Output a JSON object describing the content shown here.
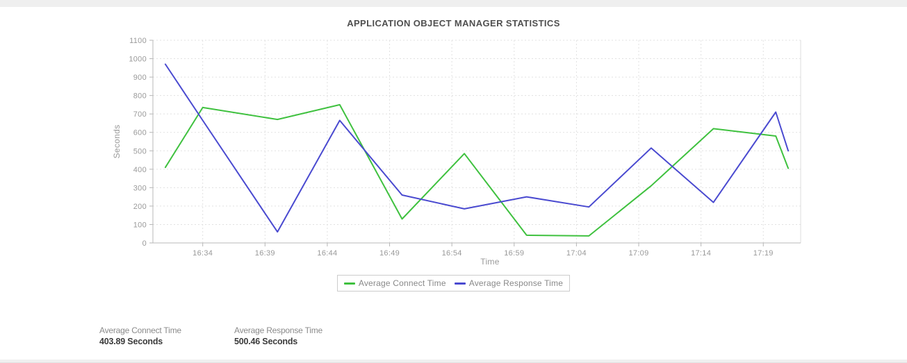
{
  "page": {
    "top_strip_color": "#efefef",
    "bottom_strip_color": "#f0f0f0"
  },
  "chart_data": {
    "type": "line",
    "title": "APPLICATION OBJECT MANAGER STATISTICS",
    "xlabel": "Time",
    "ylabel": "Seconds",
    "ylim": [
      0,
      1100
    ],
    "y_tick_step": 100,
    "x_ticks": [
      "16:34",
      "16:39",
      "16:44",
      "16:49",
      "16:54",
      "16:59",
      "17:04",
      "17:09",
      "17:14",
      "17:19"
    ],
    "x_range": [
      "16:30",
      "17:22"
    ],
    "grid": true,
    "legend_position": "bottom",
    "series": [
      {
        "name": "Average Connect Time",
        "color": "#3fc13f",
        "x": [
          "16:31",
          "16:34",
          "16:40",
          "16:45",
          "16:50",
          "16:55",
          "17:00",
          "17:05",
          "17:10",
          "17:15",
          "17:20",
          "17:21"
        ],
        "values": [
          410,
          735,
          670,
          750,
          130,
          485,
          42,
          38,
          310,
          620,
          580,
          405
        ]
      },
      {
        "name": "Average Response Time",
        "color": "#4a4ad0",
        "x": [
          "16:31",
          "16:34",
          "16:40",
          "16:45",
          "16:50",
          "16:55",
          "17:00",
          "17:05",
          "17:10",
          "17:15",
          "17:20",
          "17:21"
        ],
        "values": [
          970,
          665,
          60,
          665,
          260,
          185,
          250,
          195,
          515,
          220,
          710,
          500
        ]
      }
    ]
  },
  "stats": [
    {
      "label": "Average Connect Time",
      "value": "403.89 Seconds"
    },
    {
      "label": "Average Response Time",
      "value": "500.46 Seconds"
    }
  ]
}
